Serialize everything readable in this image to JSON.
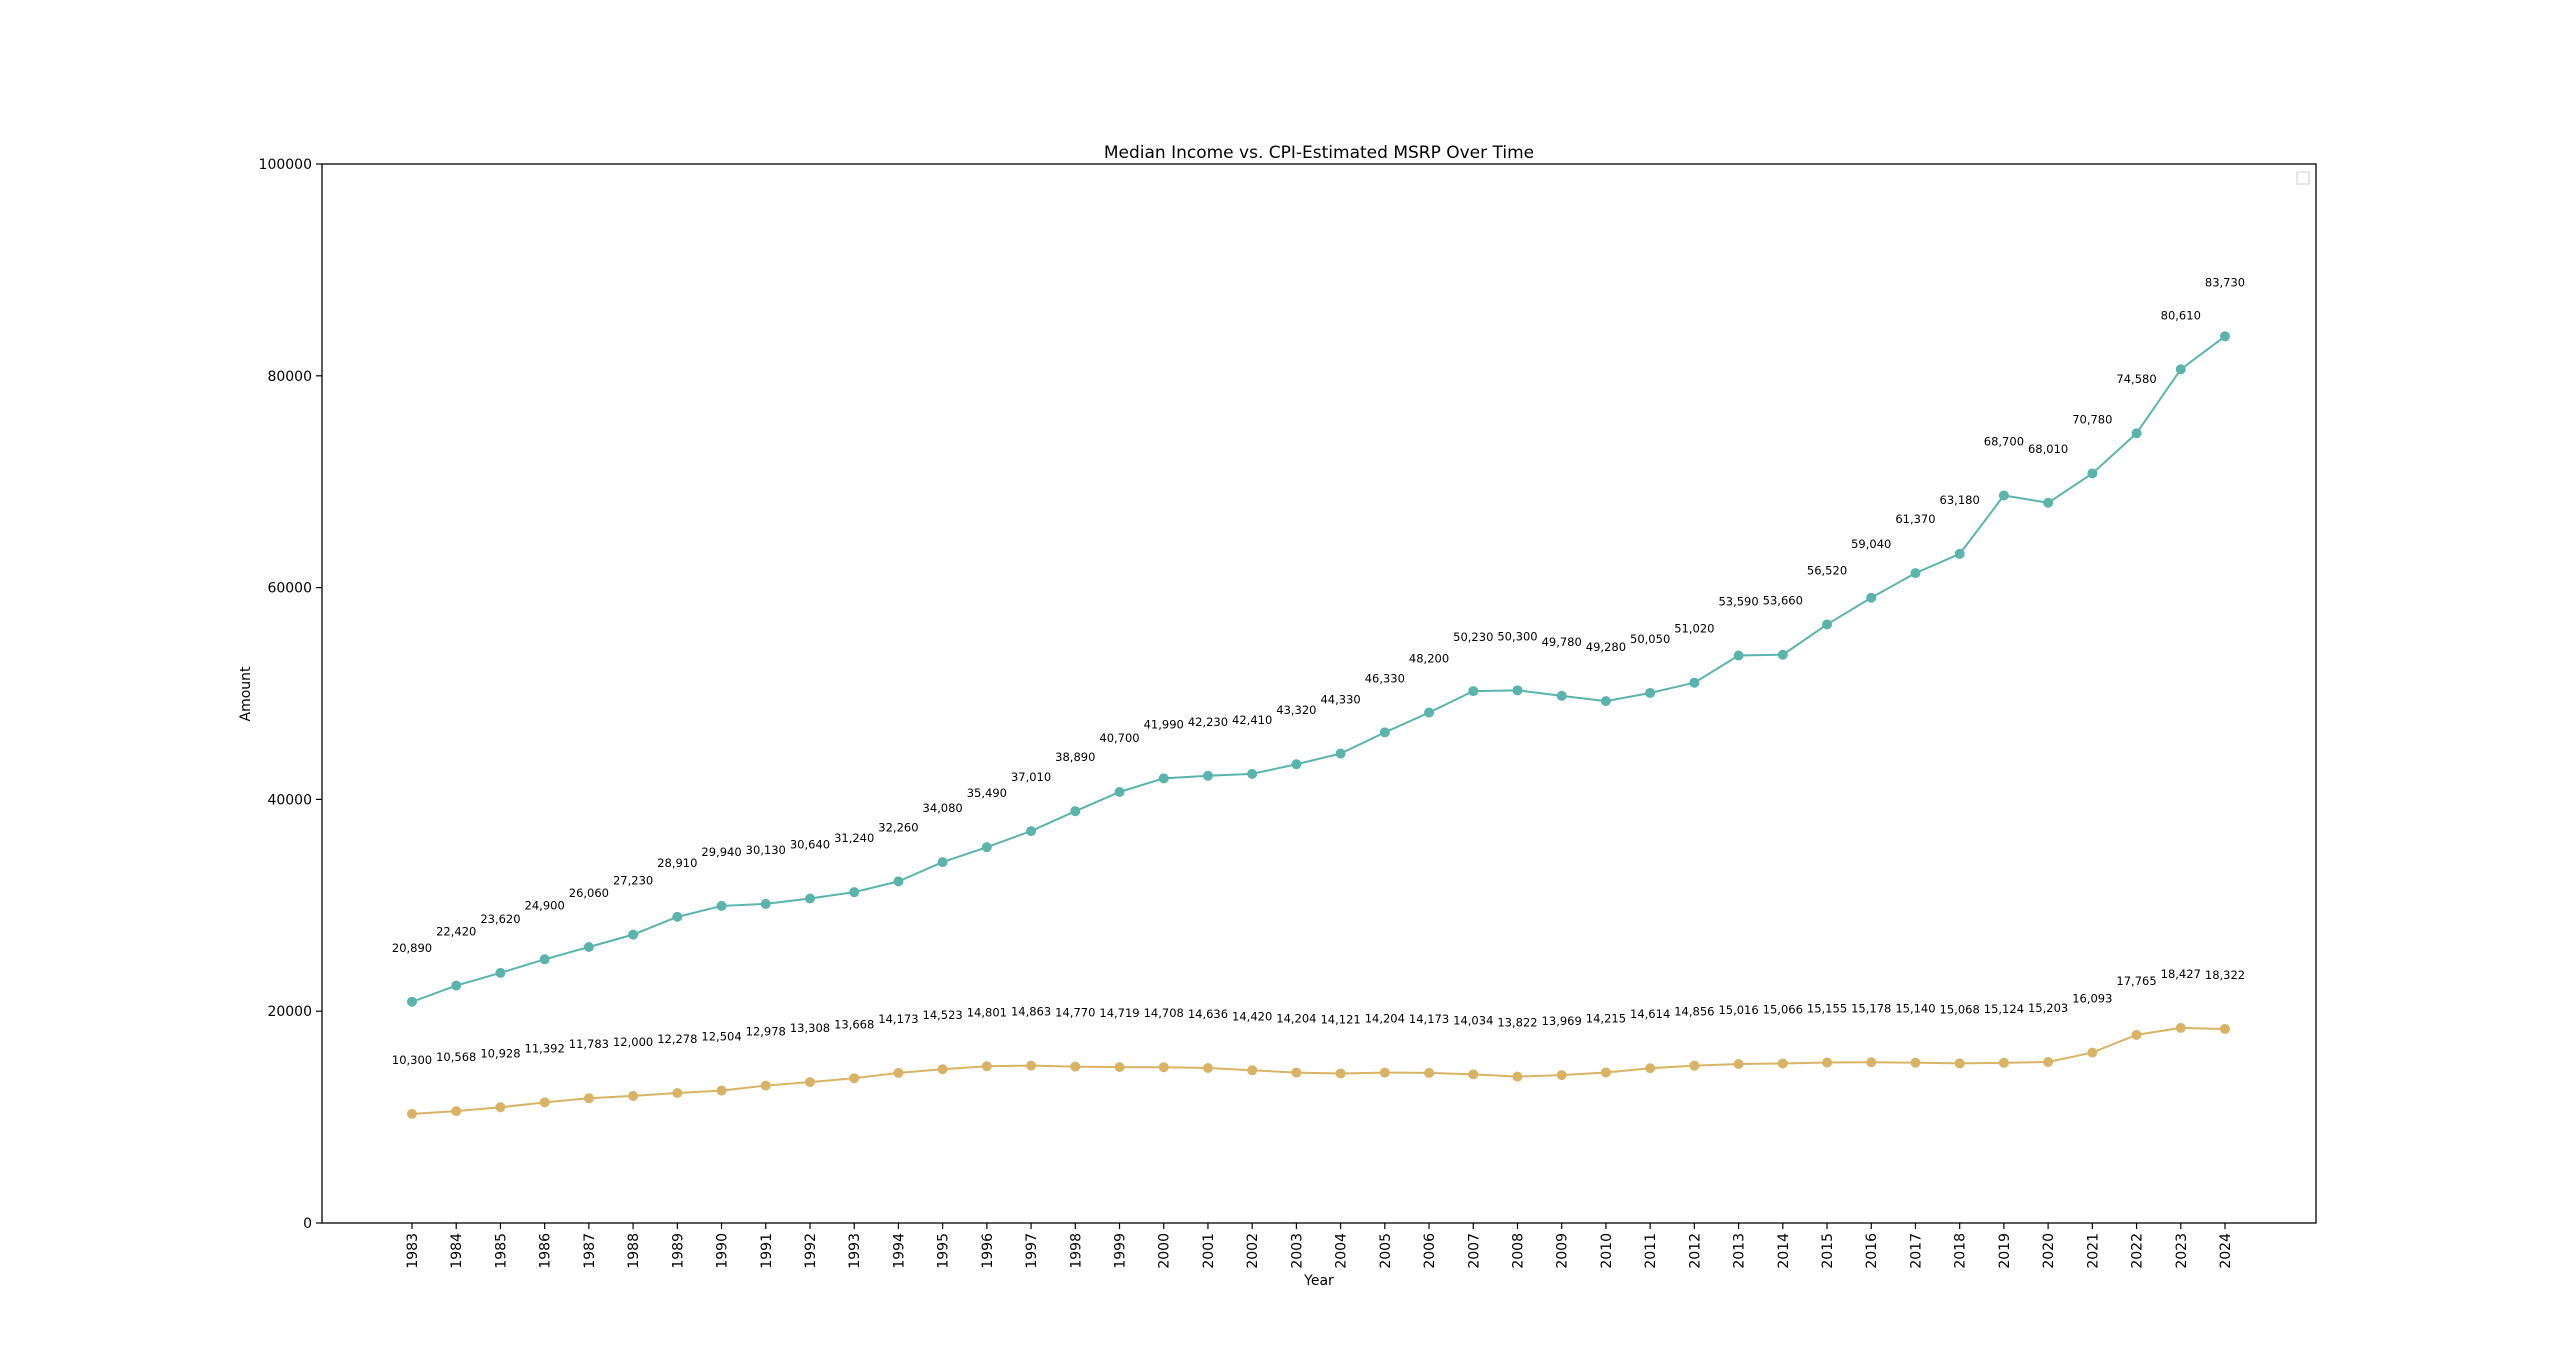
{
  "chart_data": {
    "type": "line",
    "title": "Median Income vs. CPI-Estimated MSRP Over Time",
    "xlabel": "Year",
    "ylabel": "Amount",
    "ylim": [
      0,
      100000
    ],
    "yticks": [
      0,
      20000,
      40000,
      60000,
      80000,
      100000
    ],
    "grid": false,
    "legend": "top-right (empty)",
    "x": [
      1983,
      1984,
      1985,
      1986,
      1987,
      1988,
      1989,
      1990,
      1991,
      1992,
      1993,
      1994,
      1995,
      1996,
      1997,
      1998,
      1999,
      2000,
      2001,
      2002,
      2003,
      2004,
      2005,
      2006,
      2007,
      2008,
      2009,
      2010,
      2011,
      2012,
      2013,
      2014,
      2015,
      2016,
      2017,
      2018,
      2019,
      2020,
      2021,
      2022,
      2023,
      2024
    ],
    "series": [
      {
        "name": "Median Income",
        "color": "#5ab4ac",
        "values": [
          20890,
          22420,
          23620,
          24900,
          26060,
          27230,
          28910,
          29940,
          30130,
          30640,
          31240,
          32260,
          34080,
          35490,
          37010,
          38890,
          40700,
          41990,
          42230,
          42410,
          43320,
          44330,
          46330,
          48200,
          50230,
          50300,
          49780,
          49280,
          50050,
          51020,
          53590,
          53660,
          56520,
          59040,
          61370,
          63180,
          68700,
          68010,
          70780,
          74580,
          80610,
          83730
        ]
      },
      {
        "name": "CPI-Estimated MSRP",
        "color": "#d8b365",
        "values": [
          10300,
          10568,
          10928,
          11392,
          11783,
          12000,
          12278,
          12504,
          12978,
          13308,
          13668,
          14173,
          14523,
          14801,
          14863,
          14770,
          14719,
          14708,
          14636,
          14420,
          14204,
          14121,
          14204,
          14173,
          14034,
          13822,
          13969,
          14215,
          14614,
          14856,
          15016,
          15066,
          15155,
          15178,
          15140,
          15068,
          15124,
          15203,
          16093,
          17765,
          18427,
          18322
        ]
      }
    ]
  }
}
